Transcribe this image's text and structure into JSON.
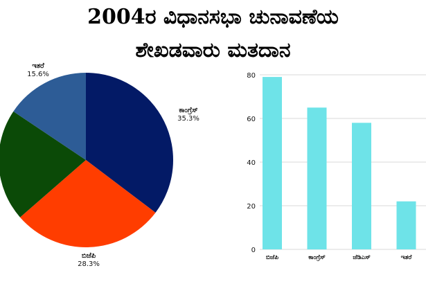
{
  "title": {
    "line1": "2004ರ ವಿಧಾನಸಭಾ ಚುನಾವಣೆಯ",
    "line2": "ಶೇಖಡವಾರು ಮತದಾನ"
  },
  "chart_data": [
    {
      "type": "pie",
      "slices": [
        {
          "label": "ಕಾಂಗ್ರೆಸ್",
          "value": 35.3,
          "display": "35.3%",
          "color": "#031a66"
        },
        {
          "label": "ಬಿಜೆಪಿ",
          "value": 28.3,
          "display": "28.3%",
          "color": "#ff3d00"
        },
        {
          "label": "",
          "value": 20.8,
          "display": "",
          "color": "#0b4a07"
        },
        {
          "label": "ಇತರೆ",
          "value": 15.6,
          "display": "15.6%",
          "color": "#2d5c96"
        }
      ],
      "start": "top, clockwise"
    },
    {
      "type": "bar",
      "categories": [
        "ಬಿಜೆಪಿ",
        "ಕಾಂಗ್ರೆಸ್",
        "ಜೆಡಿಎಸ್",
        "ಇತರೆ"
      ],
      "values": [
        79,
        65,
        58,
        22
      ],
      "yticks": [
        0,
        20,
        40,
        60,
        80
      ],
      "ylim": [
        0,
        80
      ],
      "grid": true,
      "bar_color": "#6ee3e8"
    }
  ]
}
